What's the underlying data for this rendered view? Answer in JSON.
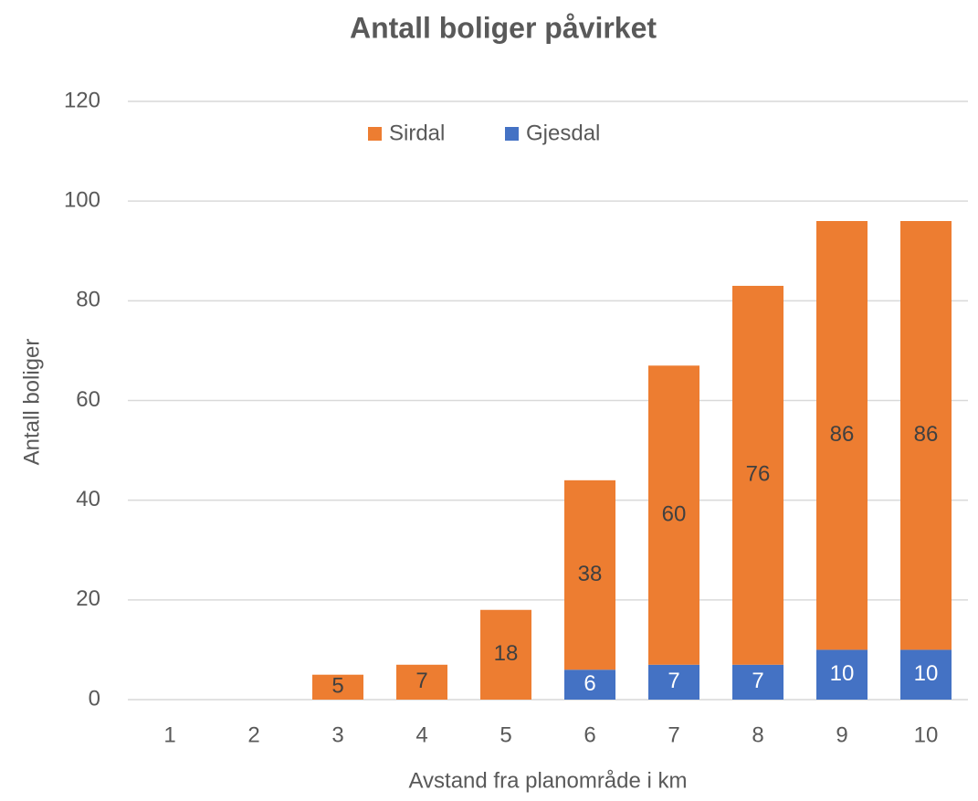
{
  "chart_data": {
    "type": "stacked_bar",
    "title": "Antall boliger påvirket",
    "x_label": "Avstand fra planområde i km",
    "y_label": "Antall boliger",
    "categories": [
      "1",
      "2",
      "3",
      "4",
      "5",
      "6",
      "7",
      "8",
      "9",
      "10"
    ],
    "series": [
      {
        "name": "Gjesdal",
        "color": "#4472c4",
        "values": [
          null,
          null,
          null,
          null,
          null,
          6,
          7,
          7,
          10,
          10
        ]
      },
      {
        "name": "Sirdal",
        "color": "#ed7d31",
        "values": [
          null,
          null,
          5,
          7,
          18,
          38,
          60,
          76,
          86,
          86
        ]
      }
    ],
    "ylim": [
      0,
      120
    ],
    "yticks": [
      0,
      20,
      40,
      60,
      80,
      100,
      120
    ],
    "grid": true,
    "legend": "top"
  }
}
